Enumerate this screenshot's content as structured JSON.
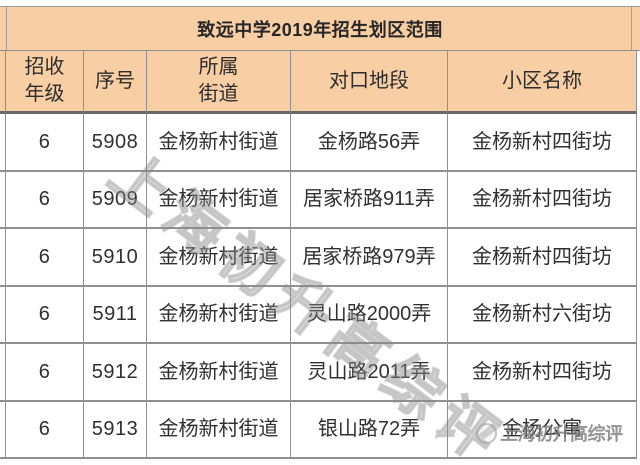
{
  "table": {
    "title": "致远中学2019年招生划区范围",
    "columns": [
      {
        "key": "grade",
        "label": "招收\n年级"
      },
      {
        "key": "serial",
        "label": "序号"
      },
      {
        "key": "street",
        "label": "所属\n街道"
      },
      {
        "key": "district",
        "label": "对口地段"
      },
      {
        "key": "community",
        "label": "小区名称"
      }
    ],
    "rows": [
      {
        "grade": "6",
        "serial": "5908",
        "street": "金杨新村街道",
        "district": "金杨路56弄",
        "community": "金杨新村四街坊"
      },
      {
        "grade": "6",
        "serial": "5909",
        "street": "金杨新村街道",
        "district": "居家桥路911弄",
        "community": "金杨新村四街坊"
      },
      {
        "grade": "6",
        "serial": "5910",
        "street": "金杨新村街道",
        "district": "居家桥路979弄",
        "community": "金杨新村四街坊"
      },
      {
        "grade": "6",
        "serial": "5911",
        "street": "金杨新村街道",
        "district": "灵山路2000弄",
        "community": "金杨新村六街坊"
      },
      {
        "grade": "6",
        "serial": "5912",
        "street": "金杨新村街道",
        "district": "灵山路2011弄",
        "community": "金杨新村四街坊"
      },
      {
        "grade": "6",
        "serial": "5913",
        "street": "金杨新村街道",
        "district": "银山路72弄",
        "community": "金杨公寓"
      }
    ]
  },
  "watermark": {
    "diagonal_text": "上海初升高综评",
    "bottom_text": "上海初升高综评"
  },
  "colors": {
    "header_bg": "#f8cea4",
    "grid_line": "#909090",
    "header_underline": "#686868",
    "title_text": "#262626",
    "cell_text": "#303030",
    "watermark_gray": "#969696"
  }
}
